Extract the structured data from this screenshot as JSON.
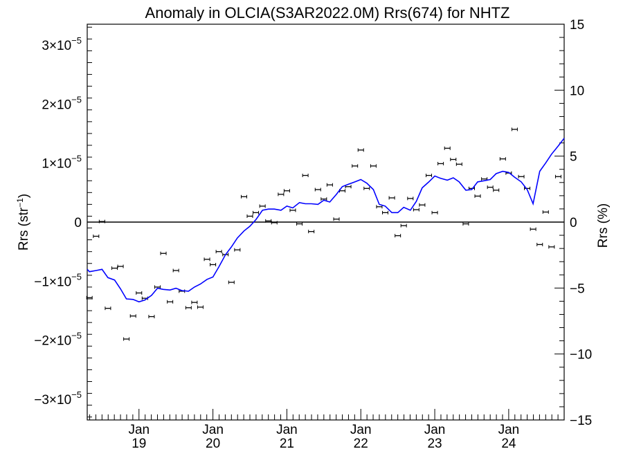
{
  "chart_data": {
    "type": "scatter",
    "title": "Anomaly in OLCIA(S3AR2022.0M) Rrs(674) for NHTZ",
    "ylabel_left": "Rrs (str",
    "ylabel_left_sup": "−1",
    "ylabel_left_end": ")",
    "ylabel_right": "Rrs (%)",
    "xlim": [
      2018.3,
      2024.75
    ],
    "ylim_left": [
      -3.35e-05,
      3.35e-05
    ],
    "ylim_right": [
      -15,
      15
    ],
    "grid": false,
    "zero_line": true,
    "colors": {
      "line": "#0000ff",
      "points": "#000000",
      "axis": "#000000"
    },
    "x_ticks": [
      {
        "x": 2019.0,
        "month": "Jan",
        "year": "19"
      },
      {
        "x": 2020.0,
        "month": "Jan",
        "year": "20"
      },
      {
        "x": 2021.0,
        "month": "Jan",
        "year": "21"
      },
      {
        "x": 2022.0,
        "month": "Jan",
        "year": "22"
      },
      {
        "x": 2023.0,
        "month": "Jan",
        "year": "23"
      },
      {
        "x": 2024.0,
        "month": "Jan",
        "year": "24"
      }
    ],
    "y_ticks_left": [
      {
        "v": 3e-05,
        "mant": "3×10",
        "exp": "−5"
      },
      {
        "v": 2e-05,
        "mant": "2×10",
        "exp": "−5"
      },
      {
        "v": 1e-05,
        "mant": "1×10",
        "exp": "−5"
      },
      {
        "v": 0,
        "mant": "0",
        "exp": ""
      },
      {
        "v": -1e-05,
        "mant": "−1×10",
        "exp": "−5"
      },
      {
        "v": -2e-05,
        "mant": "−2×10",
        "exp": "−5"
      },
      {
        "v": -3e-05,
        "mant": "−3×10",
        "exp": "−5"
      }
    ],
    "y_ticks_right": [
      {
        "v": 15,
        "label": "15"
      },
      {
        "v": 10,
        "label": "10"
      },
      {
        "v": 5,
        "label": "5"
      },
      {
        "v": 0,
        "label": "0"
      },
      {
        "v": -5,
        "label": "−5"
      },
      {
        "v": -10,
        "label": "−10"
      },
      {
        "v": -15,
        "label": "−15"
      }
    ],
    "series": [
      {
        "kind": "points_with_errorbars",
        "x": [
          2018.33,
          2018.42,
          2018.5,
          2018.58,
          2018.67,
          2018.75,
          2018.83,
          2018.92,
          2019.0,
          2019.08,
          2019.17,
          2019.25,
          2019.33,
          2019.42,
          2019.5,
          2019.58,
          2019.67,
          2019.75,
          2019.83,
          2019.92,
          2020.0,
          2020.08,
          2020.17,
          2020.25,
          2020.33,
          2020.42,
          2020.5,
          2020.58,
          2020.67,
          2020.75,
          2020.83,
          2020.92,
          2021.0,
          2021.08,
          2021.17,
          2021.25,
          2021.33,
          2021.42,
          2021.5,
          2021.58,
          2021.67,
          2021.75,
          2021.83,
          2021.92,
          2022.0,
          2022.08,
          2022.17,
          2022.25,
          2022.33,
          2022.42,
          2022.5,
          2022.58,
          2022.67,
          2022.75,
          2022.83,
          2022.92,
          2023.0,
          2023.08,
          2023.17,
          2023.25,
          2023.33,
          2023.42,
          2023.5,
          2023.58,
          2023.67,
          2023.75,
          2023.83,
          2023.92,
          2024.0,
          2024.08,
          2024.17,
          2024.25,
          2024.33,
          2024.42,
          2024.5,
          2024.58,
          2024.67
        ],
        "y": [
          -1.28e-05,
          -2.4e-06,
          1e-07,
          -1.46e-05,
          -7.8e-06,
          -7.5e-06,
          -1.98e-05,
          -1.59e-05,
          -1.2e-05,
          -1.29e-05,
          -1.6e-05,
          -1.1e-05,
          -5.3e-06,
          -1.35e-05,
          -8.2e-06,
          -1.17e-05,
          -1.45e-05,
          -1.36e-05,
          -1.44e-05,
          -6.3e-06,
          -7.2e-06,
          -5e-06,
          -5.5e-06,
          -1.02e-05,
          -4.7e-06,
          4.3e-06,
          1e-06,
          1.6e-06,
          2.7e-06,
          2e-07,
          -1e-07,
          4.7e-06,
          5.3e-06,
          2e-06,
          -3e-07,
          7.9e-06,
          -1.6e-06,
          5.5e-06,
          3.9e-06,
          6.3e-06,
          5e-07,
          5.3e-06,
          6e-06,
          9.5e-06,
          1.22e-05,
          5.7e-06,
          9.5e-06,
          2.6e-06,
          1.6e-06,
          4.1e-06,
          -2.3e-06,
          -6e-07,
          4e-06,
          2.1e-06,
          2.9e-06,
          7.9e-06,
          1.6e-06,
          9.9e-06,
          1.25e-05,
          1.06e-05,
          9.8e-06,
          -3e-07,
          5.7e-06,
          4.4e-06,
          7.3e-06,
          5.9e-06,
          5.4e-06,
          1.07e-05,
          8.3e-06,
          1.57e-05,
          7.7e-06,
          5.7e-06,
          -1.2e-06,
          -3.8e-06,
          1.7e-06,
          -4.2e-06,
          7.7e-06
        ]
      },
      {
        "kind": "line",
        "x": [
          2018.3,
          2018.33,
          2018.42,
          2018.5,
          2018.58,
          2018.67,
          2018.75,
          2018.83,
          2018.92,
          2019.0,
          2019.08,
          2019.17,
          2019.25,
          2019.33,
          2019.42,
          2019.5,
          2019.58,
          2019.67,
          2019.75,
          2019.83,
          2019.92,
          2020.0,
          2020.08,
          2020.17,
          2020.25,
          2020.33,
          2020.42,
          2020.5,
          2020.58,
          2020.67,
          2020.75,
          2020.83,
          2020.92,
          2021.0,
          2021.08,
          2021.17,
          2021.25,
          2021.33,
          2021.42,
          2021.5,
          2021.58,
          2021.67,
          2021.75,
          2021.83,
          2021.92,
          2022.0,
          2022.08,
          2022.17,
          2022.25,
          2022.33,
          2022.42,
          2022.5,
          2022.58,
          2022.67,
          2022.75,
          2022.83,
          2022.92,
          2023.0,
          2023.08,
          2023.17,
          2023.25,
          2023.33,
          2023.42,
          2023.5,
          2023.58,
          2023.67,
          2023.75,
          2023.83,
          2023.92,
          2024.0,
          2024.08,
          2024.17,
          2024.25,
          2024.33,
          2024.42,
          2024.5,
          2024.58,
          2024.67,
          2024.75
        ],
        "y": [
          -8e-06,
          -8.4e-06,
          -8.2e-06,
          -8e-06,
          -9.4e-06,
          -9.8e-06,
          -1.13e-05,
          -1.3e-05,
          -1.31e-05,
          -1.35e-05,
          -1.32e-05,
          -1.24e-05,
          -1.12e-05,
          -1.14e-05,
          -1.15e-05,
          -1.12e-05,
          -1.16e-05,
          -1.17e-05,
          -1.1e-05,
          -1.05e-05,
          -9.7e-06,
          -9.3e-06,
          -7.6e-06,
          -5.5e-06,
          -4.2e-06,
          -2.7e-06,
          -1.5e-06,
          -7e-07,
          4e-07,
          2e-06,
          2.2e-06,
          2.2e-06,
          2e-06,
          2.7e-06,
          2.4e-06,
          3.3e-06,
          3.1e-06,
          3.1e-06,
          3e-06,
          3.7e-06,
          3.4e-06,
          4.7e-06,
          6e-06,
          6.4e-06,
          6.8e-06,
          7.2e-06,
          6.6e-06,
          5.5e-06,
          3e-06,
          2.7e-06,
          1.6e-06,
          1.6e-06,
          2.5e-06,
          2e-06,
          3.5e-06,
          5.8e-06,
          6.8e-06,
          7.8e-06,
          7.4e-06,
          7.1e-06,
          7.5e-06,
          6.8e-06,
          5.4e-06,
          5.5e-06,
          6.8e-06,
          7e-06,
          7.2e-06,
          8.2e-06,
          8.6e-06,
          8.4e-06,
          7.6e-06,
          6.8e-06,
          5.5e-06,
          3.1e-06,
          8.6e-06,
          1e-05,
          1.15e-05,
          1.29e-05,
          1.42e-05
        ]
      }
    ]
  }
}
